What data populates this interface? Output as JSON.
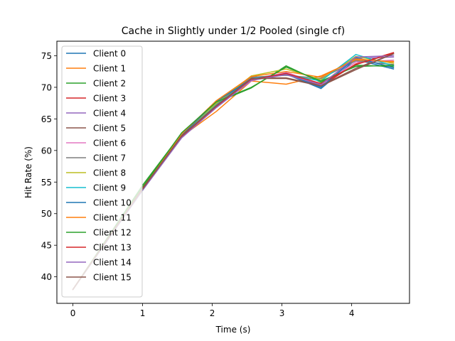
{
  "chart_data": {
    "type": "line",
    "title": "Cache in Slightly under 1/2 Pooled (single cf)",
    "xlabel": "Time (s)",
    "ylabel": "Hit Rate (%)",
    "xlim": [
      -0.23,
      4.83
    ],
    "ylim": [
      35.8,
      77.3
    ],
    "xticks": [
      0,
      1,
      2,
      3,
      4
    ],
    "yticks": [
      40,
      45,
      50,
      55,
      60,
      65,
      70,
      75
    ],
    "legend_position": "upper-left",
    "x": [
      0,
      1,
      1.56,
      2.06,
      2.56,
      3.06,
      3.56,
      4.06,
      4.6
    ],
    "series": [
      {
        "name": "Client 0",
        "color": "#1f77b4",
        "values": [
          38.0,
          53.8,
          62.4,
          67.2,
          71.2,
          72.1,
          69.8,
          74.4,
          72.9
        ]
      },
      {
        "name": "Client 1",
        "color": "#ff7f0e",
        "values": [
          38.0,
          53.9,
          62.2,
          66.2,
          71.0,
          70.5,
          71.8,
          74.3,
          74.1
        ]
      },
      {
        "name": "Client 2",
        "color": "#2ca02c",
        "values": [
          38.0,
          54.5,
          62.7,
          67.6,
          69.9,
          73.4,
          70.8,
          73.5,
          73.3
        ]
      },
      {
        "name": "Client 3",
        "color": "#d62728",
        "values": [
          38.0,
          53.9,
          62.1,
          67.1,
          71.1,
          72.2,
          70.2,
          73.7,
          75.5
        ]
      },
      {
        "name": "Client 4",
        "color": "#9467bd",
        "values": [
          38.0,
          53.8,
          62.0,
          66.9,
          71.3,
          72.3,
          70.5,
          74.6,
          74.8
        ]
      },
      {
        "name": "Client 5",
        "color": "#8c564b",
        "values": [
          38.0,
          53.9,
          62.3,
          67.3,
          71.5,
          71.5,
          70.3,
          73.0,
          75.3
        ]
      },
      {
        "name": "Client 6",
        "color": "#e377c2",
        "values": [
          38.0,
          53.8,
          62.1,
          67.0,
          71.0,
          72.4,
          70.4,
          74.0,
          74.3
        ]
      },
      {
        "name": "Client 7",
        "color": "#7f7f7f",
        "values": [
          38.0,
          53.8,
          62.2,
          67.4,
          71.6,
          71.9,
          71.4,
          74.2,
          73.6
        ]
      },
      {
        "name": "Client 8",
        "color": "#bcbd22",
        "values": [
          38.0,
          54.0,
          62.5,
          67.5,
          71.8,
          72.9,
          71.2,
          74.9,
          73.8
        ]
      },
      {
        "name": "Client 9",
        "color": "#17becf",
        "values": [
          38.0,
          53.7,
          62.3,
          67.2,
          71.4,
          72.0,
          71.0,
          75.2,
          73.4
        ]
      },
      {
        "name": "Client 10",
        "color": "#1f77b4",
        "values": [
          38.0,
          53.9,
          62.4,
          67.8,
          71.3,
          72.1,
          70.0,
          74.7,
          73.1
        ]
      },
      {
        "name": "Client 11",
        "color": "#ff7f0e",
        "values": [
          38.0,
          54.1,
          62.6,
          67.9,
          71.7,
          72.5,
          71.6,
          74.5,
          74.0
        ]
      },
      {
        "name": "Client 12",
        "color": "#2ca02c",
        "values": [
          38.0,
          54.2,
          62.8,
          67.7,
          70.0,
          73.2,
          71.0,
          73.3,
          73.5
        ]
      },
      {
        "name": "Client 13",
        "color": "#d62728",
        "values": [
          38.0,
          54.0,
          62.1,
          67.0,
          71.2,
          72.2,
          70.6,
          73.6,
          75.4
        ]
      },
      {
        "name": "Client 14",
        "color": "#9467bd",
        "values": [
          38.0,
          53.7,
          62.0,
          66.8,
          71.1,
          72.0,
          70.4,
          74.8,
          75.0
        ]
      },
      {
        "name": "Client 15",
        "color": "#8c564b",
        "values": [
          38.0,
          53.9,
          62.3,
          67.1,
          71.4,
          71.4,
          70.2,
          72.8,
          75.3
        ]
      }
    ]
  }
}
